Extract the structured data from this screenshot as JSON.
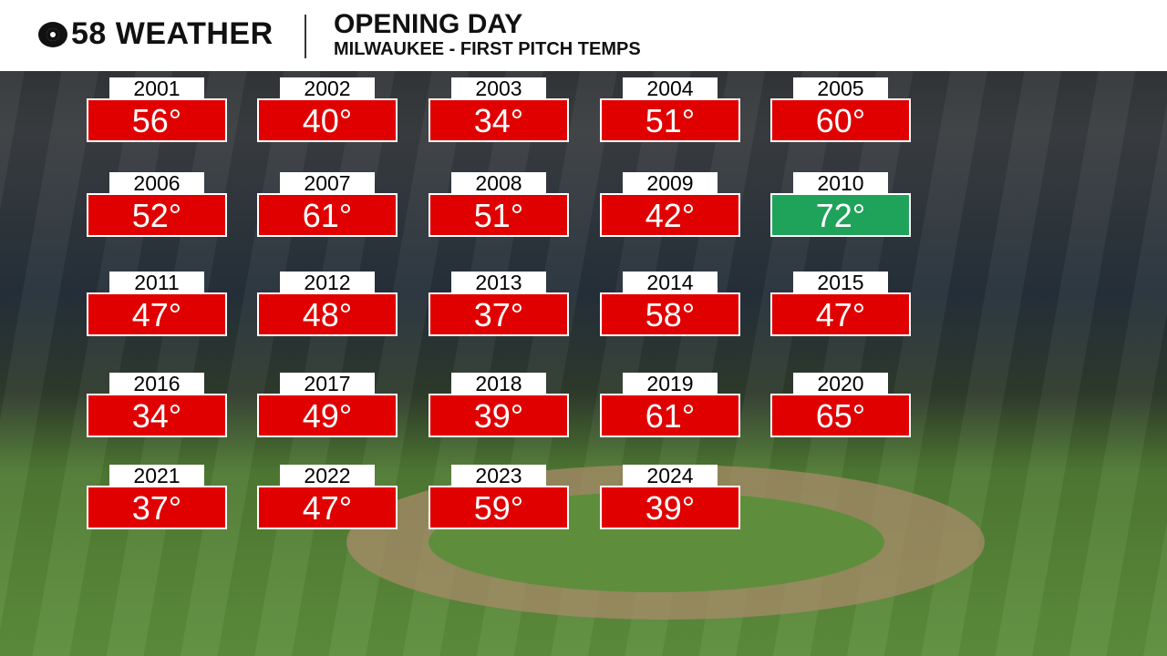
{
  "header": {
    "brand": "58 WEATHER",
    "title": "OPENING DAY",
    "subtitle": "MILWAUKEE - FIRST PITCH TEMPS"
  },
  "tiles": [
    {
      "year": "2001",
      "temp": "56°",
      "color": "#e00000"
    },
    {
      "year": "2002",
      "temp": "40°",
      "color": "#e00000"
    },
    {
      "year": "2003",
      "temp": "34°",
      "color": "#e00000"
    },
    {
      "year": "2004",
      "temp": "51°",
      "color": "#e00000"
    },
    {
      "year": "2005",
      "temp": "60°",
      "color": "#e00000"
    },
    {
      "year": "2006",
      "temp": "52°",
      "color": "#e00000"
    },
    {
      "year": "2007",
      "temp": "61°",
      "color": "#e00000"
    },
    {
      "year": "2008",
      "temp": "51°",
      "color": "#e00000"
    },
    {
      "year": "2009",
      "temp": "42°",
      "color": "#e00000"
    },
    {
      "year": "2010",
      "temp": "72°",
      "color": "#1fa35a"
    },
    {
      "year": "2011",
      "temp": "47°",
      "color": "#e00000"
    },
    {
      "year": "2012",
      "temp": "48°",
      "color": "#e00000"
    },
    {
      "year": "2013",
      "temp": "37°",
      "color": "#e00000"
    },
    {
      "year": "2014",
      "temp": "58°",
      "color": "#e00000"
    },
    {
      "year": "2015",
      "temp": "47°",
      "color": "#e00000"
    },
    {
      "year": "2016",
      "temp": "34°",
      "color": "#e00000"
    },
    {
      "year": "2017",
      "temp": "49°",
      "color": "#e00000"
    },
    {
      "year": "2018",
      "temp": "39°",
      "color": "#e00000"
    },
    {
      "year": "2019",
      "temp": "61°",
      "color": "#e00000"
    },
    {
      "year": "2020",
      "temp": "65°",
      "color": "#e00000"
    },
    {
      "year": "2021",
      "temp": "37°",
      "color": "#e00000"
    },
    {
      "year": "2022",
      "temp": "47°",
      "color": "#e00000"
    },
    {
      "year": "2023",
      "temp": "59°",
      "color": "#e00000"
    },
    {
      "year": "2024",
      "temp": "39°",
      "color": "#e00000"
    }
  ]
}
